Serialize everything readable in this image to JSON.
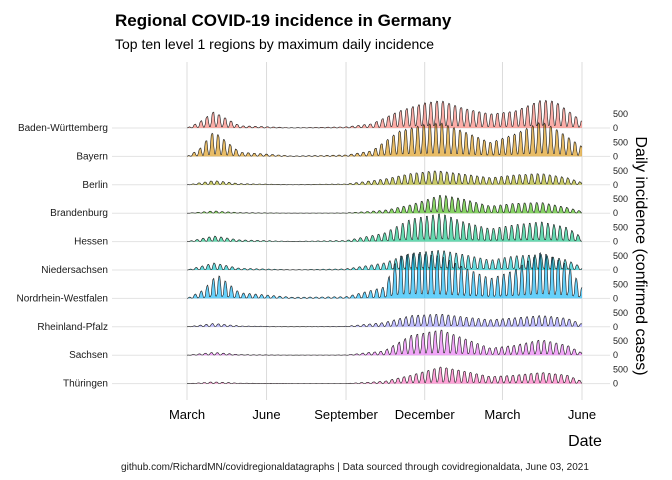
{
  "chart_data": {
    "type": "area",
    "title": "Regional COVID-19 incidence in Germany",
    "subtitle": "Top ten level 1 regions by maximum daily incidence",
    "xlabel": "Date",
    "ylabel": "Daily incidence (confirmed cases)",
    "caption": "github.com/RichardMN/covidregionaldatagraphs | Data sourced through covidregionaldata, June 03, 2021",
    "x_ticks": [
      "March",
      "June",
      "September",
      "December",
      "March",
      "June"
    ],
    "y_ticks": [
      "0",
      "500"
    ],
    "grid": true,
    "legend": "none",
    "series": [
      {
        "name": "Baden-Württemberg",
        "color": "#F8766D",
        "x": [
          "2020-03-01",
          "2020-03-15",
          "2020-04-01",
          "2020-05-01",
          "2020-07-01",
          "2020-09-01",
          "2020-10-01",
          "2020-11-01",
          "2020-12-01",
          "2020-12-20",
          "2021-01-15",
          "2021-02-15",
          "2021-03-15",
          "2021-04-15",
          "2021-05-01",
          "2021-06-01"
        ],
        "values": [
          0,
          200,
          580,
          80,
          10,
          40,
          150,
          600,
          900,
          980,
          700,
          500,
          600,
          1000,
          950,
          250
        ]
      },
      {
        "name": "Bayern",
        "color": "#D89000",
        "x": [
          "2020-03-01",
          "2020-03-15",
          "2020-04-01",
          "2020-05-01",
          "2020-07-01",
          "2020-09-01",
          "2020-10-01",
          "2020-11-01",
          "2020-12-01",
          "2020-12-20",
          "2021-01-15",
          "2021-02-15",
          "2021-03-15",
          "2021-04-15",
          "2021-05-01",
          "2021-06-01"
        ],
        "values": [
          0,
          250,
          900,
          150,
          15,
          50,
          200,
          900,
          1150,
          1200,
          900,
          500,
          800,
          1250,
          1000,
          350
        ]
      },
      {
        "name": "Berlin",
        "color": "#A3A500",
        "x": [
          "2020-03-01",
          "2020-04-01",
          "2020-05-01",
          "2020-07-01",
          "2020-09-01",
          "2020-10-15",
          "2020-11-15",
          "2020-12-15",
          "2021-01-15",
          "2021-02-15",
          "2021-03-15",
          "2021-04-15",
          "2021-05-15",
          "2021-06-01"
        ],
        "values": [
          0,
          150,
          40,
          10,
          30,
          200,
          400,
          500,
          380,
          250,
          350,
          400,
          250,
          80
        ]
      },
      {
        "name": "Brandenburg",
        "color": "#39B600",
        "x": [
          "2020-03-01",
          "2020-04-01",
          "2020-05-01",
          "2020-07-01",
          "2020-09-01",
          "2020-10-15",
          "2020-11-15",
          "2020-12-20",
          "2021-01-15",
          "2021-02-15",
          "2021-03-15",
          "2021-04-15",
          "2021-05-15",
          "2021-06-01"
        ],
        "values": [
          0,
          80,
          20,
          5,
          10,
          100,
          300,
          650,
          500,
          250,
          350,
          380,
          200,
          60
        ]
      },
      {
        "name": "Hessen",
        "color": "#00BF7D",
        "x": [
          "2020-03-01",
          "2020-04-01",
          "2020-05-01",
          "2020-07-01",
          "2020-09-01",
          "2020-10-15",
          "2020-11-15",
          "2020-12-20",
          "2021-01-15",
          "2021-02-15",
          "2021-03-15",
          "2021-04-15",
          "2021-05-15",
          "2021-06-01"
        ],
        "values": [
          0,
          200,
          60,
          10,
          40,
          300,
          800,
          1000,
          700,
          450,
          600,
          700,
          500,
          150
        ]
      },
      {
        "name": "Niedersachsen",
        "color": "#00BFC4",
        "x": [
          "2020-03-01",
          "2020-04-01",
          "2020-05-01",
          "2020-07-01",
          "2020-09-01",
          "2020-10-15",
          "2020-11-15",
          "2020-12-20",
          "2021-01-15",
          "2021-02-15",
          "2021-03-15",
          "2021-04-15",
          "2021-05-15",
          "2021-06-01"
        ],
        "values": [
          0,
          250,
          60,
          10,
          40,
          250,
          600,
          700,
          550,
          350,
          500,
          550,
          350,
          100
        ]
      },
      {
        "name": "Nordrhein-Westfalen",
        "color": "#00B0F6",
        "x": [
          "2020-03-01",
          "2020-03-20",
          "2020-04-05",
          "2020-05-01",
          "2020-07-01",
          "2020-09-01",
          "2020-10-15",
          "2020-11-01",
          "2020-11-20",
          "2020-12-20",
          "2021-01-15",
          "2021-02-15",
          "2021-03-15",
          "2021-04-15",
          "2021-05-15",
          "2021-06-01"
        ],
        "values": [
          0,
          300,
          850,
          200,
          40,
          60,
          400,
          1500,
          1600,
          1500,
          1100,
          700,
          1000,
          1650,
          1200,
          400
        ]
      },
      {
        "name": "Rheinland-Pfalz",
        "color": "#9590FF",
        "x": [
          "2020-03-01",
          "2020-04-01",
          "2020-05-01",
          "2020-07-01",
          "2020-09-01",
          "2020-10-15",
          "2020-11-15",
          "2020-12-20",
          "2021-01-15",
          "2021-02-15",
          "2021-03-15",
          "2021-04-15",
          "2021-05-15",
          "2021-06-01"
        ],
        "values": [
          0,
          120,
          30,
          5,
          20,
          150,
          400,
          450,
          350,
          250,
          320,
          400,
          300,
          100
        ]
      },
      {
        "name": "Sachsen",
        "color": "#E76BF3",
        "x": [
          "2020-03-01",
          "2020-04-01",
          "2020-05-01",
          "2020-07-01",
          "2020-09-01",
          "2020-10-15",
          "2020-11-15",
          "2020-12-20",
          "2021-01-15",
          "2021-02-15",
          "2021-03-15",
          "2021-04-15",
          "2021-05-15",
          "2021-06-01"
        ],
        "values": [
          0,
          100,
          20,
          5,
          10,
          150,
          700,
          900,
          600,
          250,
          350,
          550,
          350,
          80
        ]
      },
      {
        "name": "Thüringen",
        "color": "#FF62BC",
        "x": [
          "2020-03-01",
          "2020-04-01",
          "2020-05-01",
          "2020-07-01",
          "2020-09-01",
          "2020-10-15",
          "2020-11-15",
          "2020-12-20",
          "2021-01-15",
          "2021-02-15",
          "2021-03-15",
          "2021-04-15",
          "2021-05-15",
          "2021-06-01"
        ],
        "values": [
          0,
          60,
          15,
          5,
          5,
          80,
          300,
          600,
          450,
          250,
          300,
          400,
          300,
          80
        ]
      }
    ]
  }
}
